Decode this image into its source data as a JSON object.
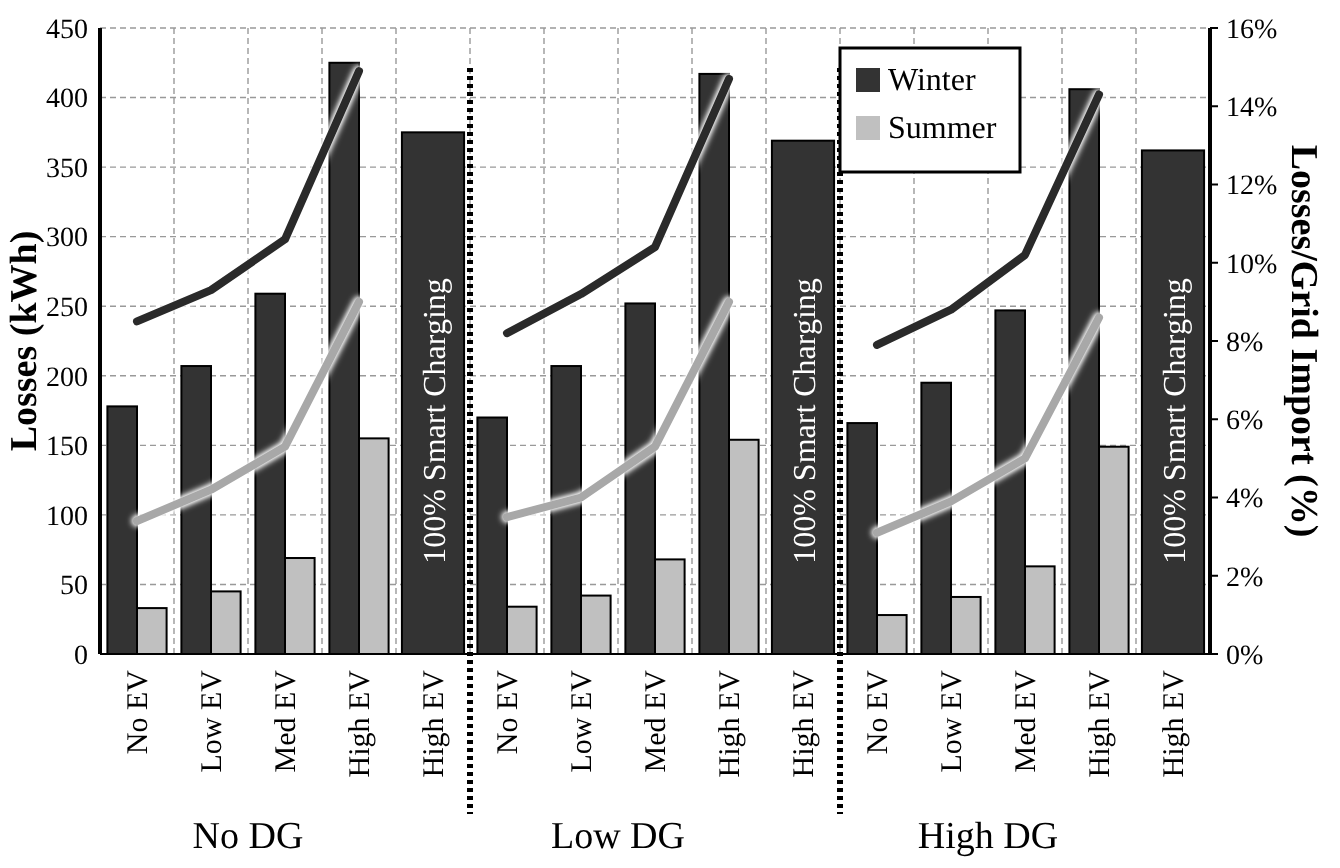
{
  "chart_data": {
    "type": "bar",
    "ylabel": "Losses (kWh)",
    "y2label": "Losses/Grid Import (%)",
    "categories": [
      "No EV",
      "Low EV",
      "Med EV",
      "High EV",
      "High EV",
      "No EV",
      "Low EV",
      "Med EV",
      "High EV",
      "High EV",
      "No EV",
      "Low EV",
      "Med EV",
      "High EV",
      "High EV"
    ],
    "series": [
      {
        "name": "Winter",
        "color": "#333333",
        "values": [
          178,
          207,
          259,
          425,
          375,
          170,
          207,
          252,
          417,
          369,
          166,
          195,
          247,
          406,
          362
        ]
      },
      {
        "name": "Summer",
        "color": "#c0c0c0",
        "values": [
          33,
          45,
          69,
          155,
          null,
          34,
          42,
          68,
          154,
          null,
          28,
          41,
          63,
          149,
          null
        ]
      },
      {
        "type": "line",
        "axis": "y2",
        "color": "#2a2a2a",
        "values": [
          8.5,
          9.3,
          10.6,
          14.9,
          null,
          8.2,
          9.2,
          10.4,
          14.7,
          null,
          7.9,
          8.8,
          10.2,
          14.3,
          null
        ]
      },
      {
        "type": "line",
        "axis": "y2",
        "color": "#a8a8a8",
        "values": [
          3.4,
          4.2,
          5.3,
          9.0,
          null,
          3.5,
          4.0,
          5.3,
          9.0,
          null,
          3.1,
          3.9,
          5.0,
          8.6,
          null
        ]
      }
    ],
    "ylim": [
      0,
      450
    ],
    "yticks": [
      0,
      50,
      100,
      150,
      200,
      250,
      300,
      350,
      400,
      450
    ],
    "y2lim": [
      0,
      16
    ],
    "y2ticks": [
      {
        "value": 0,
        "label": "0%"
      },
      {
        "value": 2,
        "label": "2%"
      },
      {
        "value": 4,
        "label": "4%"
      },
      {
        "value": 6,
        "label": "6%"
      },
      {
        "value": 8,
        "label": "8%"
      },
      {
        "value": 10,
        "label": "10%"
      },
      {
        "value": 12,
        "label": "12%"
      },
      {
        "value": 14,
        "label": "14%"
      },
      {
        "value": 16,
        "label": "16%"
      }
    ],
    "grid": true,
    "legend": "top right",
    "marker": "none",
    "line_style": "solid",
    "annotations": [
      "No DG",
      "Low DG",
      "High DG",
      "100% Smart Charging",
      "100% Smart Charging",
      "100% Smart Charging"
    ]
  }
}
